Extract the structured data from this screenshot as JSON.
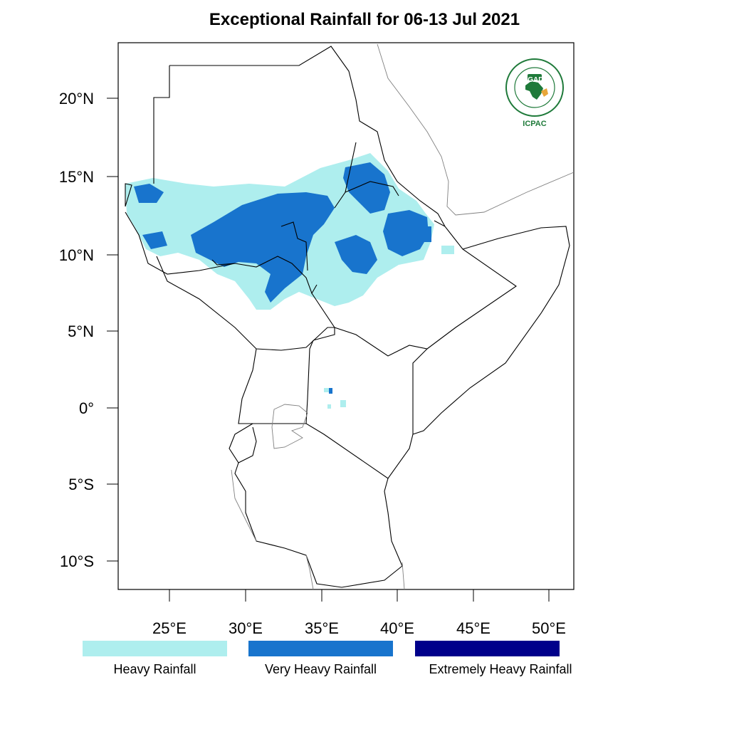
{
  "title": "Exceptional Rainfall for 06-13 Jul 2021",
  "axes": {
    "lat_ticks": [
      "20°N",
      "15°N",
      "10°N",
      "5°N",
      "0°",
      "5°S",
      "10°S"
    ],
    "lon_ticks": [
      "25°E",
      "30°E",
      "35°E",
      "40°E",
      "45°E",
      "50°E"
    ]
  },
  "legend": [
    {
      "label": "Heavy Rainfall",
      "color": "#aeeeee"
    },
    {
      "label": "Very Heavy Rainfall",
      "color": "#1874cd"
    },
    {
      "label": "Extremely Heavy Rainfall",
      "color": "#00008b"
    }
  ],
  "logo": {
    "name": "IGAD",
    "org": "ICPAC",
    "ring_text": "INTERGOVERNMENTAL AUTHORITY ON DEVELOPMENT",
    "accent": "#1f7a3a"
  },
  "map": {
    "lon_range": [
      21.5,
      51.5
    ],
    "lat_range": [
      -11.5,
      23.5
    ]
  }
}
